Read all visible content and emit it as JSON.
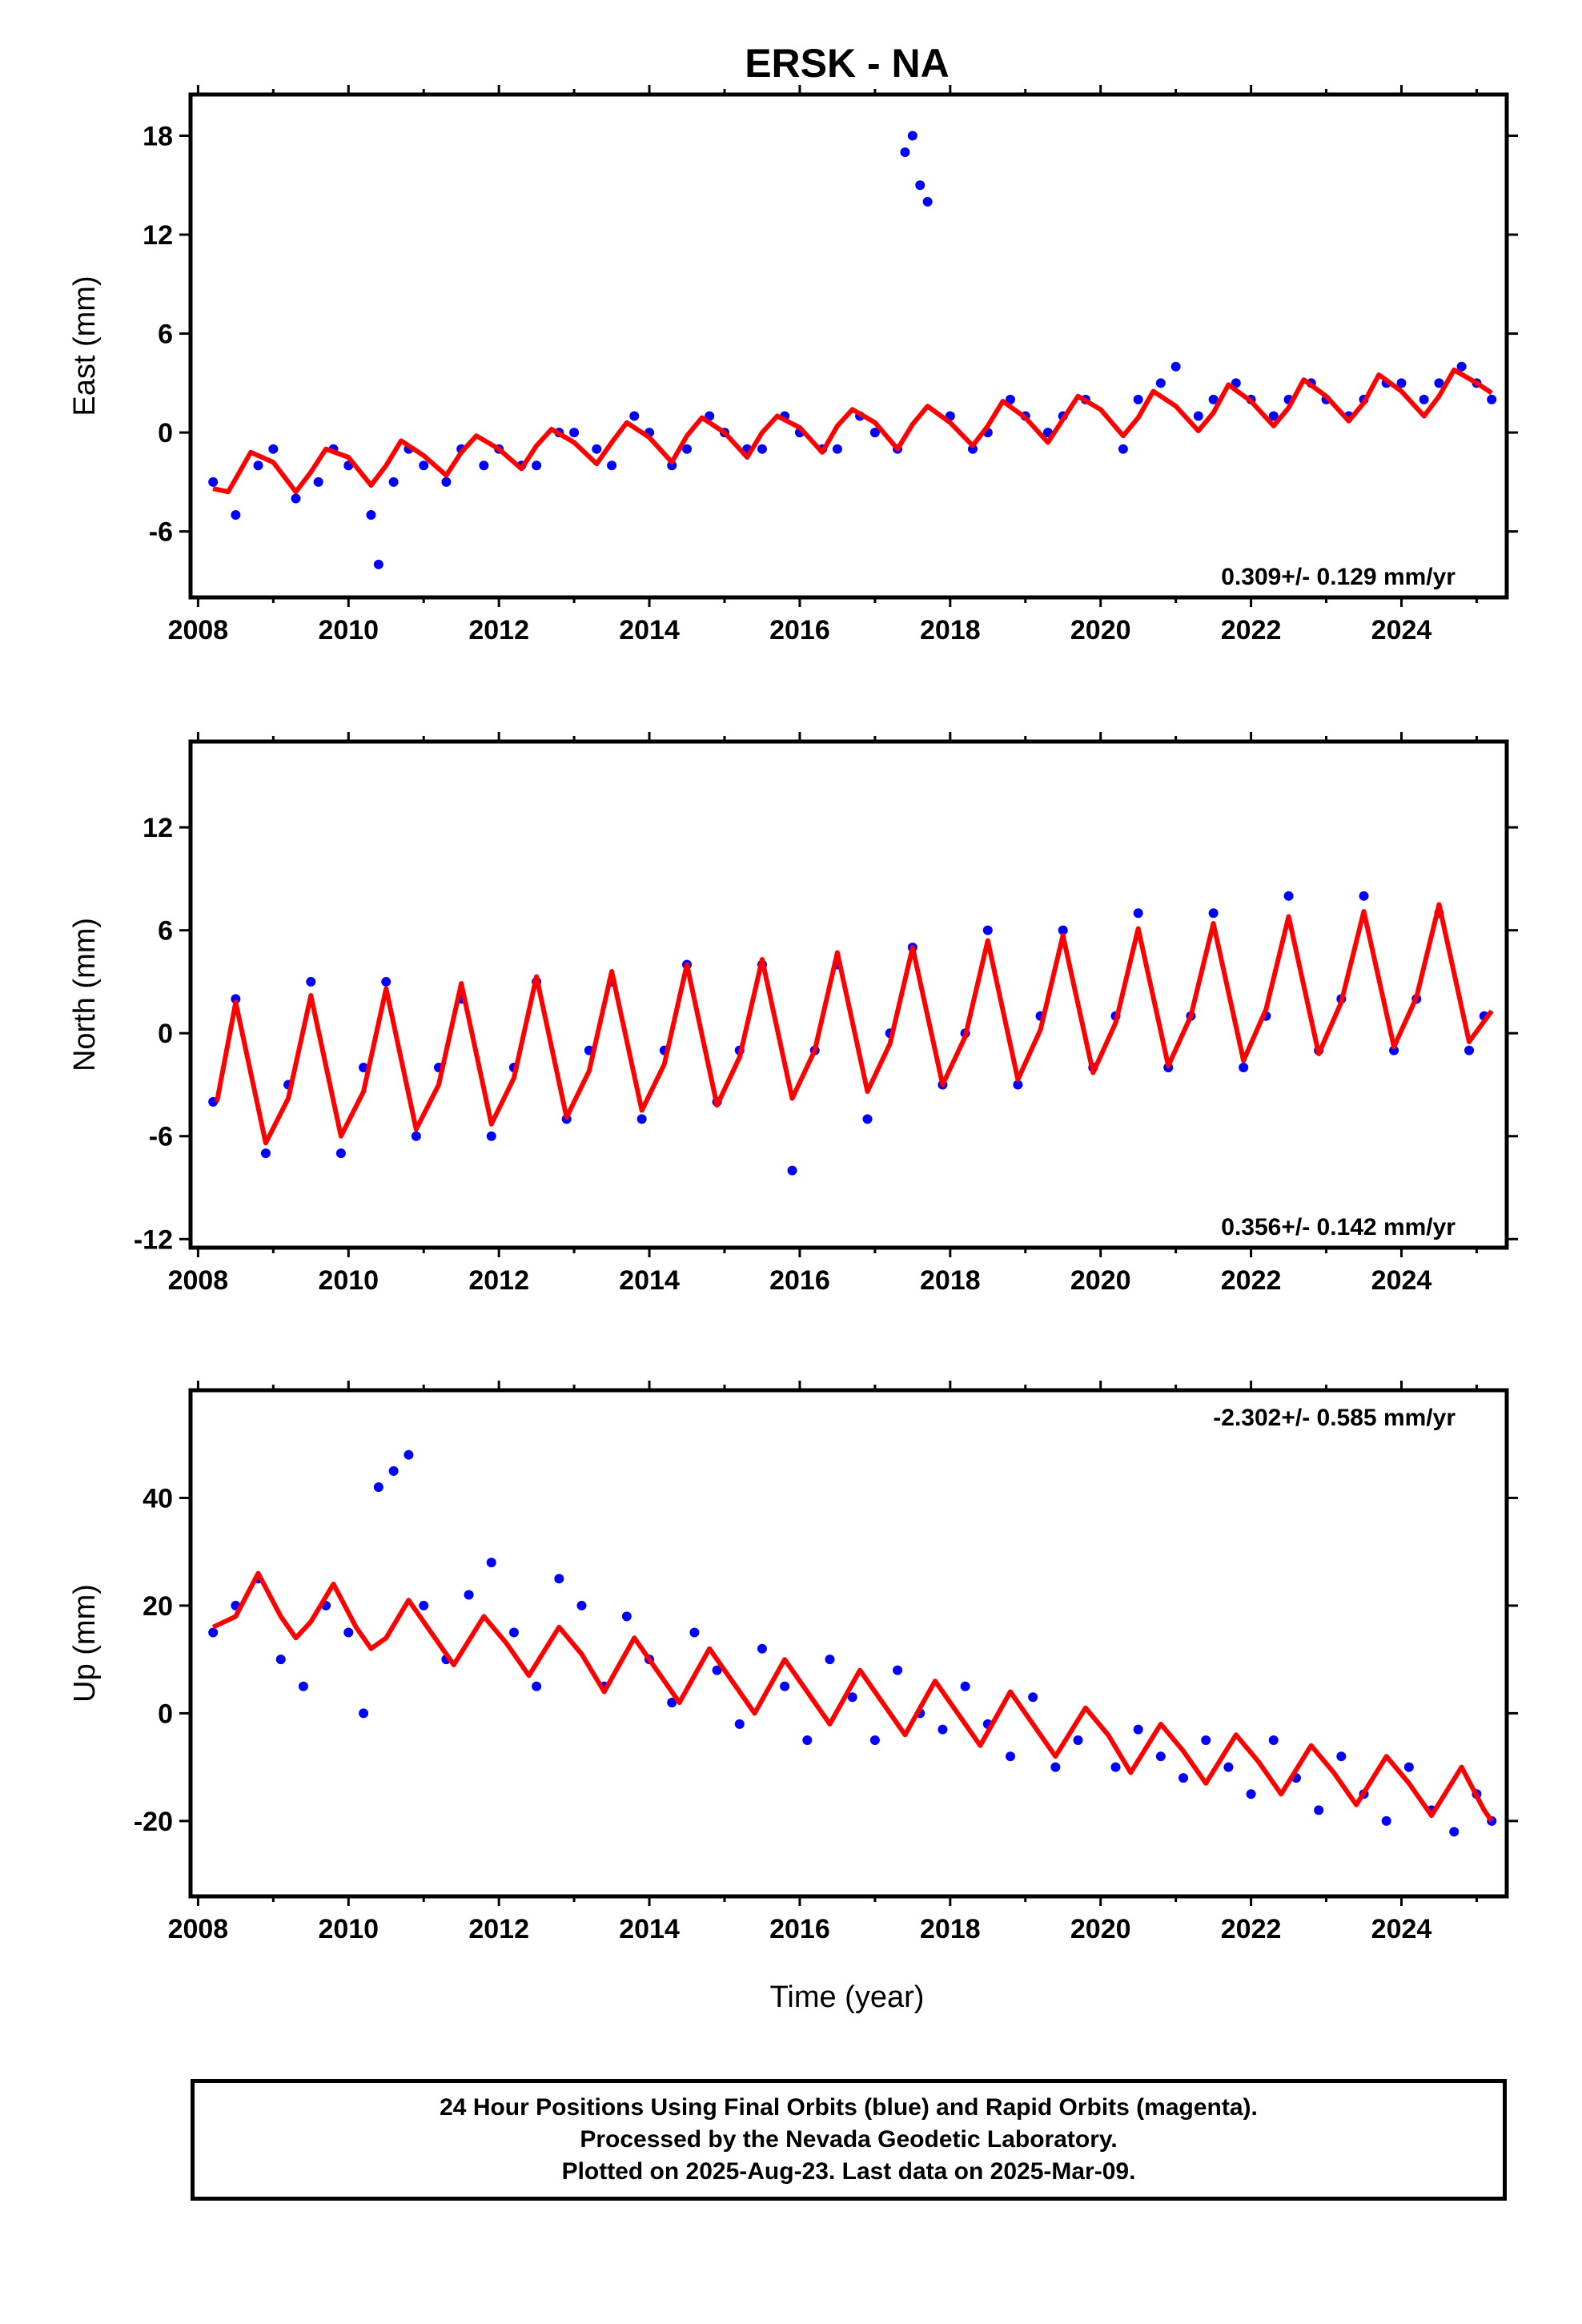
{
  "title": "ERSK - NA",
  "colors": {
    "points": "#0000ff",
    "fit": "#ff0000",
    "frame": "#000000"
  },
  "x_axis": {
    "label": "Time (year)",
    "ticks": [
      "2008",
      "2010",
      "2012",
      "2014",
      "2016",
      "2018",
      "2020",
      "2022",
      "2024"
    ]
  },
  "panels": [
    {
      "ylabel": "East (mm)",
      "yticks": [
        "18",
        "12",
        "6",
        "0",
        "-6"
      ],
      "rate": "0.309+/- 0.129 mm/yr"
    },
    {
      "ylabel": "North (mm)",
      "yticks": [
        "12",
        "6",
        "0",
        "-6",
        "-12"
      ],
      "rate": "0.356+/- 0.142 mm/yr"
    },
    {
      "ylabel": "Up (mm)",
      "yticks": [
        "40",
        "20",
        "0",
        "-20"
      ],
      "rate": "-2.302+/- 0.585 mm/yr"
    }
  ],
  "caption": {
    "line1": "24 Hour Positions Using Final Orbits (blue) and Rapid Orbits (magenta).",
    "line2": "Processed by the Nevada Geodetic Laboratory.",
    "line3": "Plotted on 2025-Aug-23. Last data on 2025-Mar-09."
  },
  "chart_data": [
    {
      "type": "scatter",
      "ylabel": "East (mm)",
      "xlim": [
        2007.9,
        2025.4
      ],
      "ylim": [
        -10,
        20.5
      ],
      "rate": "0.309+/- 0.129 mm/yr",
      "series": [
        {
          "x": [
            2008.2,
            2008.5,
            2008.8,
            2009.0,
            2009.3,
            2009.6,
            2009.8,
            2010.0,
            2010.3,
            2010.4,
            2010.6,
            2010.8,
            2011.0,
            2011.3,
            2011.5,
            2011.8,
            2012.0,
            2012.3,
            2012.5,
            2012.8,
            2013.0,
            2013.3,
            2013.5,
            2013.8,
            2014.0,
            2014.3,
            2014.5,
            2014.8,
            2015.0,
            2015.3,
            2015.5,
            2015.8,
            2016.0,
            2016.3,
            2016.5,
            2016.8,
            2017.0,
            2017.3,
            2017.4,
            2017.5,
            2017.6,
            2017.7,
            2018.0,
            2018.3,
            2018.5,
            2018.8,
            2019.0,
            2019.3,
            2019.5,
            2019.8,
            2020.3,
            2020.5,
            2020.8,
            2021.0,
            2021.3,
            2021.5,
            2021.8,
            2022.0,
            2022.3,
            2022.5,
            2022.8,
            2023.0,
            2023.3,
            2023.5,
            2023.8,
            2024.0,
            2024.3,
            2024.5,
            2024.8,
            2025.0,
            2025.2
          ],
          "y": [
            -3,
            -5,
            -2,
            -1,
            -4,
            -3,
            -1,
            -2,
            -5,
            -8,
            -3,
            -1,
            -2,
            -3,
            -1,
            -2,
            -1,
            -2,
            -2,
            0,
            0,
            -1,
            -2,
            1,
            0,
            -2,
            -1,
            1,
            0,
            -1,
            -1,
            1,
            0,
            -1,
            -1,
            1,
            0,
            -1,
            17,
            18,
            15,
            14,
            1,
            -1,
            0,
            2,
            1,
            0,
            1,
            2,
            -1,
            2,
            3,
            4,
            1,
            2,
            3,
            2,
            1,
            2,
            3,
            2,
            1,
            2,
            3,
            3,
            2,
            3,
            4,
            3,
            2
          ]
        },
        {
          "name": "fit",
          "x": [
            2008.2,
            2008.4,
            2008.7,
            2009.0,
            2009.3,
            2009.5,
            2009.7,
            2010.0,
            2010.3,
            2010.5,
            2010.7,
            2011.0,
            2011.3,
            2011.5,
            2011.7,
            2012.0,
            2012.3,
            2012.5,
            2012.7,
            2013.0,
            2013.3,
            2013.5,
            2013.7,
            2014.0,
            2014.3,
            2014.5,
            2014.7,
            2015.0,
            2015.3,
            2015.5,
            2015.7,
            2016.0,
            2016.3,
            2016.5,
            2016.7,
            2017.0,
            2017.3,
            2017.5,
            2017.7,
            2018.0,
            2018.3,
            2018.5,
            2018.7,
            2019.0,
            2019.3,
            2019.5,
            2019.7,
            2020.0,
            2020.3,
            2020.5,
            2020.7,
            2021.0,
            2021.3,
            2021.5,
            2021.7,
            2022.0,
            2022.3,
            2022.5,
            2022.7,
            2023.0,
            2023.3,
            2023.5,
            2023.7,
            2024.0,
            2024.3,
            2024.5,
            2024.7,
            2025.0,
            2025.2
          ],
          "y": [
            -3.4,
            -3.6,
            -1.2,
            -1.8,
            -3.6,
            -2.4,
            -1.0,
            -1.5,
            -3.2,
            -2.0,
            -0.5,
            -1.4,
            -2.6,
            -1.2,
            -0.2,
            -1.0,
            -2.2,
            -0.8,
            0.2,
            -0.6,
            -1.9,
            -0.6,
            0.6,
            -0.3,
            -1.8,
            -0.2,
            0.9,
            0.0,
            -1.5,
            0.0,
            1.0,
            0.3,
            -1.2,
            0.4,
            1.4,
            0.6,
            -1.0,
            0.5,
            1.6,
            0.6,
            -0.8,
            0.4,
            1.9,
            0.9,
            -0.6,
            0.8,
            2.2,
            1.4,
            -0.2,
            0.9,
            2.5,
            1.6,
            0.1,
            1.2,
            2.9,
            1.9,
            0.4,
            1.5,
            3.2,
            2.2,
            0.7,
            1.8,
            3.5,
            2.5,
            1.0,
            2.2,
            3.8,
            3.0,
            2.4
          ]
        }
      ]
    },
    {
      "type": "scatter",
      "ylabel": "North (mm)",
      "xlim": [
        2007.9,
        2025.4
      ],
      "ylim": [
        -12.5,
        17
      ],
      "rate": "0.356+/- 0.142 mm/yr",
      "series": [
        {
          "x": [
            2008.2,
            2008.5,
            2008.9,
            2009.2,
            2009.5,
            2009.9,
            2010.2,
            2010.5,
            2010.9,
            2011.2,
            2011.5,
            2011.9,
            2012.2,
            2012.5,
            2012.9,
            2013.2,
            2013.5,
            2013.9,
            2014.2,
            2014.5,
            2014.9,
            2015.2,
            2015.5,
            2015.9,
            2016.2,
            2016.5,
            2016.9,
            2017.2,
            2017.5,
            2017.9,
            2018.2,
            2018.5,
            2018.9,
            2019.2,
            2019.5,
            2019.9,
            2020.2,
            2020.5,
            2020.9,
            2021.2,
            2021.5,
            2021.9,
            2022.2,
            2022.5,
            2022.9,
            2023.2,
            2023.5,
            2023.9,
            2024.2,
            2024.5,
            2024.9,
            2025.1
          ],
          "y": [
            -4,
            2,
            -7,
            -3,
            3,
            -7,
            -2,
            3,
            -6,
            -2,
            2,
            -6,
            -2,
            3,
            -5,
            -1,
            3,
            -5,
            -1,
            4,
            -4,
            -1,
            4,
            -8,
            -1,
            4,
            -5,
            0,
            5,
            -3,
            0,
            6,
            -3,
            1,
            6,
            -2,
            1,
            7,
            -2,
            1,
            7,
            -2,
            1,
            8,
            -1,
            2,
            8,
            -1,
            2,
            7,
            -1,
            1
          ]
        },
        {
          "name": "fit",
          "x": [
            2008.25,
            2008.5,
            2008.9,
            2009.2,
            2009.5,
            2009.9,
            2010.2,
            2010.5,
            2010.9,
            2011.2,
            2011.5,
            2011.9,
            2012.2,
            2012.5,
            2012.9,
            2013.2,
            2013.5,
            2013.9,
            2014.2,
            2014.5,
            2014.9,
            2015.2,
            2015.5,
            2015.9,
            2016.2,
            2016.5,
            2016.9,
            2017.2,
            2017.5,
            2017.9,
            2018.2,
            2018.5,
            2018.9,
            2019.2,
            2019.5,
            2019.9,
            2020.2,
            2020.5,
            2020.9,
            2021.2,
            2021.5,
            2021.9,
            2022.2,
            2022.5,
            2022.9,
            2023.2,
            2023.5,
            2023.9,
            2024.2,
            2024.5,
            2024.9,
            2025.2
          ],
          "y": [
            -4.0,
            1.8,
            -6.4,
            -3.8,
            2.2,
            -6.0,
            -3.4,
            2.6,
            -5.6,
            -3.0,
            2.9,
            -5.3,
            -2.6,
            3.3,
            -4.9,
            -2.2,
            3.6,
            -4.5,
            -1.8,
            4.0,
            -4.2,
            -1.4,
            4.3,
            -3.8,
            -1.0,
            4.7,
            -3.4,
            -0.6,
            5.0,
            -3.0,
            -0.2,
            5.4,
            -2.7,
            0.2,
            5.7,
            -2.3,
            0.6,
            6.1,
            -1.9,
            1.0,
            6.4,
            -1.6,
            1.4,
            6.8,
            -1.2,
            1.8,
            7.1,
            -0.8,
            2.1,
            7.5,
            -0.5,
            1.3
          ]
        }
      ]
    },
    {
      "type": "scatter",
      "ylabel": "Up (mm)",
      "xlim": [
        2007.9,
        2025.4
      ],
      "ylim": [
        -34,
        60
      ],
      "rate": "-2.302+/- 0.585 mm/yr",
      "series": [
        {
          "x": [
            2008.2,
            2008.5,
            2008.8,
            2009.1,
            2009.4,
            2009.7,
            2010.0,
            2010.2,
            2010.4,
            2010.6,
            2010.8,
            2011.0,
            2011.3,
            2011.6,
            2011.9,
            2012.2,
            2012.5,
            2012.8,
            2013.1,
            2013.4,
            2013.7,
            2014.0,
            2014.3,
            2014.6,
            2014.9,
            2015.2,
            2015.5,
            2015.8,
            2016.1,
            2016.4,
            2016.7,
            2017.0,
            2017.3,
            2017.6,
            2017.9,
            2018.2,
            2018.5,
            2018.8,
            2019.1,
            2019.4,
            2019.7,
            2020.2,
            2020.5,
            2020.8,
            2021.1,
            2021.4,
            2021.7,
            2022.0,
            2022.3,
            2022.6,
            2022.9,
            2023.2,
            2023.5,
            2023.8,
            2024.1,
            2024.4,
            2024.7,
            2025.0,
            2025.2
          ],
          "y": [
            15,
            20,
            25,
            10,
            5,
            20,
            15,
            0,
            42,
            45,
            48,
            20,
            10,
            22,
            28,
            15,
            5,
            25,
            20,
            5,
            18,
            10,
            2,
            15,
            8,
            -2,
            12,
            5,
            -5,
            10,
            3,
            -5,
            8,
            0,
            -3,
            5,
            -2,
            -8,
            3,
            -10,
            -5,
            -10,
            -3,
            -8,
            -12,
            -5,
            -10,
            -15,
            -5,
            -12,
            -18,
            -8,
            -15,
            -20,
            -10,
            -18,
            -22,
            -15,
            -20
          ]
        },
        {
          "name": "fit",
          "x": [
            2008.2,
            2008.5,
            2008.8,
            2009.1,
            2009.3,
            2009.5,
            2009.8,
            2010.1,
            2010.3,
            2010.5,
            2010.8,
            2011.1,
            2011.4,
            2011.8,
            2012.1,
            2012.4,
            2012.8,
            2013.1,
            2013.4,
            2013.8,
            2014.1,
            2014.4,
            2014.8,
            2015.1,
            2015.4,
            2015.8,
            2016.1,
            2016.4,
            2016.8,
            2017.1,
            2017.4,
            2017.8,
            2018.1,
            2018.4,
            2018.8,
            2019.1,
            2019.4,
            2019.8,
            2020.1,
            2020.4,
            2020.8,
            2021.1,
            2021.4,
            2021.8,
            2022.1,
            2022.4,
            2022.8,
            2023.1,
            2023.4,
            2023.8,
            2024.1,
            2024.4,
            2024.8,
            2025.1,
            2025.2
          ],
          "y": [
            16,
            18,
            26,
            18,
            14,
            17,
            24,
            16,
            12,
            14,
            21,
            15,
            9,
            18,
            13,
            7,
            16,
            11,
            4,
            14,
            8,
            2,
            12,
            6,
            0,
            10,
            4,
            -2,
            8,
            2,
            -4,
            6,
            0,
            -6,
            4,
            -2,
            -8,
            1,
            -4,
            -11,
            -2,
            -7,
            -13,
            -4,
            -9,
            -15,
            -6,
            -11,
            -17,
            -8,
            -13,
            -19,
            -10,
            -18,
            -20
          ]
        }
      ]
    }
  ]
}
